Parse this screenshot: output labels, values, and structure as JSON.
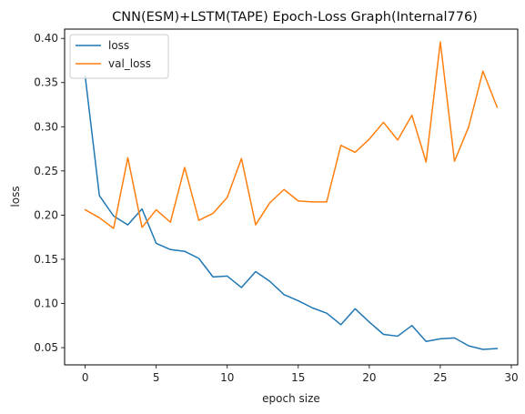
{
  "chart_data": {
    "type": "line",
    "title": "CNN(ESM)+LSTM(TAPE) Epoch-Loss Graph(Internal776)",
    "xlabel": "epoch size",
    "ylabel": "loss",
    "xlim": [
      -1.45,
      30.45
    ],
    "ylim": [
      0.0305,
      0.4105
    ],
    "xticks": [
      0,
      5,
      10,
      15,
      20,
      25,
      30
    ],
    "yticks": [
      0.05,
      0.1,
      0.15,
      0.2,
      0.25,
      0.3,
      0.35,
      0.4
    ],
    "ytick_labels": [
      "0.05",
      "0.10",
      "0.15",
      "0.20",
      "0.25",
      "0.30",
      "0.35",
      "0.40"
    ],
    "grid": false,
    "legend_position": "top-left",
    "x": [
      0,
      1,
      2,
      3,
      4,
      5,
      6,
      7,
      8,
      9,
      10,
      11,
      12,
      13,
      14,
      15,
      16,
      17,
      18,
      19,
      20,
      21,
      22,
      23,
      24,
      25,
      26,
      27,
      28,
      29
    ],
    "series": [
      {
        "name": "loss",
        "color": "#1f77b4",
        "values": [
          0.357,
          0.222,
          0.199,
          0.189,
          0.207,
          0.168,
          0.161,
          0.159,
          0.151,
          0.13,
          0.131,
          0.118,
          0.136,
          0.125,
          0.11,
          0.103,
          0.095,
          0.089,
          0.076,
          0.094,
          0.079,
          0.065,
          0.063,
          0.075,
          0.057,
          0.06,
          0.061,
          0.052,
          0.048,
          0.049
        ]
      },
      {
        "name": "val_loss",
        "color": "#ff7f0e",
        "values": [
          0.206,
          0.197,
          0.185,
          0.265,
          0.186,
          0.206,
          0.192,
          0.254,
          0.194,
          0.202,
          0.22,
          0.264,
          0.189,
          0.214,
          0.229,
          0.216,
          0.215,
          0.215,
          0.279,
          0.271,
          0.286,
          0.305,
          0.285,
          0.313,
          0.26,
          0.396,
          0.261,
          0.3,
          0.363,
          0.322
        ]
      }
    ]
  }
}
